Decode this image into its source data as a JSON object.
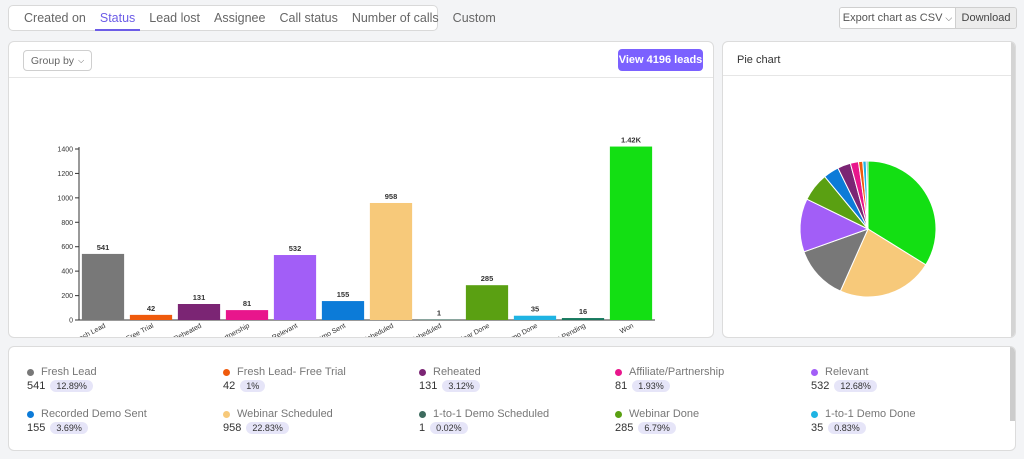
{
  "tabs": [
    {
      "label": "Created on",
      "active": false
    },
    {
      "label": "Status",
      "active": true
    },
    {
      "label": "Lead lost",
      "active": false
    },
    {
      "label": "Assignee",
      "active": false
    },
    {
      "label": "Call status",
      "active": false
    },
    {
      "label": "Number of calls",
      "active": false
    },
    {
      "label": "Custom",
      "active": false
    }
  ],
  "export": {
    "select_label": "Export chart as CSV",
    "download_label": "Download"
  },
  "bar_panel": {
    "group_by_label": "Group by",
    "view_leads_label": "View 4196 leads"
  },
  "pie_panel": {
    "title": "Pie chart"
  },
  "chart_data": [
    {
      "type": "bar",
      "categories": [
        "Fresh Lead",
        "Fresh Lead- Free Trial",
        "Reheated",
        "Affiliate/Partnership",
        "Relevant",
        "Recorded Demo Sent",
        "Webinar Scheduled",
        "1-to-1 Demo Scheduled",
        "Webinar Done",
        "1-to-1 Demo Done",
        "Payment Pending",
        "Won"
      ],
      "values": [
        541,
        42,
        131,
        81,
        532,
        155,
        958,
        1,
        285,
        35,
        16,
        1420
      ],
      "data_labels": [
        "541",
        "42",
        "131",
        "81",
        "532",
        "155",
        "958",
        "1",
        "285",
        "35",
        "16",
        "1.42K"
      ],
      "colors": [
        "#787878",
        "#ef5a0c",
        "#7b2574",
        "#e8168c",
        "#a25ef7",
        "#0c7bd8",
        "#f7c97a",
        "#3d6b5e",
        "#5aa012",
        "#1fb4e3",
        "#16795e",
        "#13df13"
      ],
      "yticks": [
        "0",
        "200",
        "400",
        "600",
        "800",
        "1000",
        "1200",
        "1400"
      ],
      "ylim": [
        0,
        1400
      ],
      "grid": false
    },
    {
      "type": "pie",
      "categories": [
        "Won",
        "Webinar Scheduled",
        "Fresh Lead",
        "Relevant",
        "Webinar Done",
        "Recorded Demo Sent",
        "Reheated",
        "Affiliate/Partnership",
        "Fresh Lead- Free Trial",
        "1-to-1 Demo Done",
        "Payment Pending",
        "1-to-1 Demo Scheduled"
      ],
      "values": [
        1420,
        958,
        541,
        532,
        285,
        155,
        131,
        81,
        42,
        35,
        16,
        1
      ],
      "colors": [
        "#13df13",
        "#f7c97a",
        "#787878",
        "#a25ef7",
        "#5aa012",
        "#0c7bd8",
        "#7b2574",
        "#e8168c",
        "#ef5a0c",
        "#1fb4e3",
        "#16795e",
        "#3d6b5e"
      ]
    }
  ],
  "legend": [
    {
      "name": "Fresh Lead",
      "count": "541",
      "pct": "12.89%",
      "color": "#787878"
    },
    {
      "name": "Fresh Lead- Free Trial",
      "count": "42",
      "pct": "1%",
      "color": "#ef5a0c"
    },
    {
      "name": "Reheated",
      "count": "131",
      "pct": "3.12%",
      "color": "#7b2574"
    },
    {
      "name": "Affiliate/Partnership",
      "count": "81",
      "pct": "1.93%",
      "color": "#e8168c"
    },
    {
      "name": "Relevant",
      "count": "532",
      "pct": "12.68%",
      "color": "#a25ef7"
    },
    {
      "name": "Recorded Demo Sent",
      "count": "155",
      "pct": "3.69%",
      "color": "#0c7bd8"
    },
    {
      "name": "Webinar Scheduled",
      "count": "958",
      "pct": "22.83%",
      "color": "#f7c97a"
    },
    {
      "name": "1-to-1 Demo Scheduled",
      "count": "1",
      "pct": "0.02%",
      "color": "#3d6b5e"
    },
    {
      "name": "Webinar Done",
      "count": "285",
      "pct": "6.79%",
      "color": "#5aa012"
    },
    {
      "name": "1-to-1 Demo Done",
      "count": "35",
      "pct": "0.83%",
      "color": "#1fb4e3"
    }
  ]
}
